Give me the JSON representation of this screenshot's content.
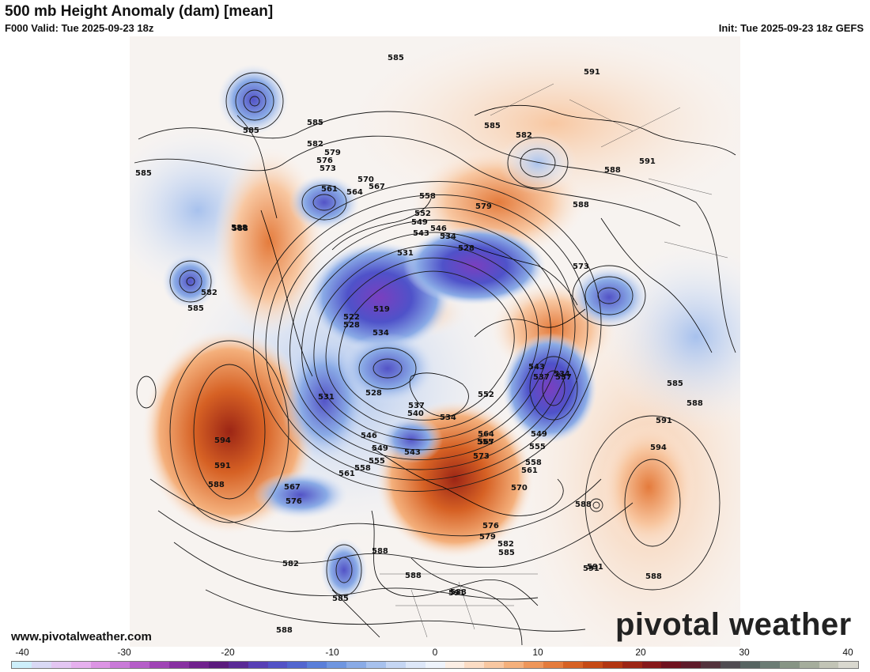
{
  "header": {
    "title": "500 mb Height Anomaly (dam) [mean]",
    "valid": "F000 Valid: Tue 2025-09-23 18z",
    "init": "Init: Tue 2025-09-23 18z GEFS"
  },
  "footer": {
    "url": "www.pivotalweather.com",
    "logo": "pivotal weather"
  },
  "colorbar": {
    "ticks": [
      "-40",
      "-30",
      "-20",
      "-10",
      "0",
      "10",
      "20",
      "30",
      "40"
    ],
    "colors": [
      "#cdeffb",
      "#d9d9f5",
      "#e3c6f2",
      "#e6b0ee",
      "#dc94e4",
      "#c97ad8",
      "#b55ec8",
      "#9f44b5",
      "#8730a1",
      "#70228d",
      "#5b1b7d",
      "#5a2a96",
      "#5840b5",
      "#5353c6",
      "#5266cf",
      "#5a7fd9",
      "#6f96e0",
      "#8aabe6",
      "#a7c1ed",
      "#c5d6f3",
      "#dde7f8",
      "#eef3fb",
      "#fbeee4",
      "#fbdcc4",
      "#f8c7a1",
      "#f4b07c",
      "#ee965a",
      "#e47b3c",
      "#d66124",
      "#c54a16",
      "#b23612",
      "#9c2515",
      "#86181a",
      "#6f121f",
      "#5e1b2a",
      "#53323c",
      "#4f4b51",
      "#566461",
      "#6b7c74",
      "#879585",
      "#a5ad9c",
      "#c2c4b6",
      "#d9d8cf"
    ]
  },
  "map_labels": [
    "585",
    "585",
    "585",
    "582",
    "579",
    "576",
    "573",
    "570",
    "567",
    "564",
    "561",
    "558",
    "552",
    "549",
    "546",
    "543",
    "534",
    "528",
    "531",
    "519",
    "522",
    "528",
    "534",
    "537",
    "531",
    "528",
    "537",
    "540",
    "534",
    "546",
    "549",
    "543",
    "555",
    "558",
    "561",
    "567",
    "576",
    "588",
    "591",
    "594",
    "582",
    "585",
    "588",
    "594",
    "591",
    "588",
    "585",
    "588",
    "591",
    "588",
    "585",
    "588",
    "591",
    "588",
    "582",
    "588",
    "579",
    "573",
    "564",
    "567",
    "555",
    "552",
    "543",
    "537",
    "534",
    "549",
    "555",
    "558",
    "561",
    "570",
    "576",
    "579",
    "582",
    "585",
    "588",
    "591",
    "573",
    "582",
    "585",
    "588",
    "591",
    "588",
    "585",
    "588",
    "591"
  ]
}
